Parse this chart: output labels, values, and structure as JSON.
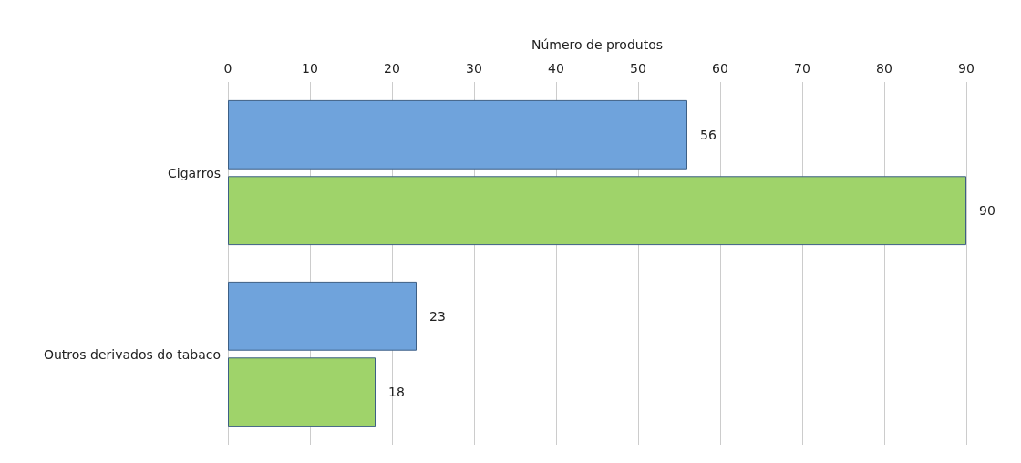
{
  "chart_data": {
    "type": "bar",
    "orientation": "horizontal",
    "xlabel": "Número de produtos",
    "categories": [
      "Cigarros",
      "Outros derivados do tabaco"
    ],
    "series": [
      {
        "color": "#6fa3dc",
        "values": [
          56,
          23
        ]
      },
      {
        "color": "#9fd36a",
        "values": [
          90,
          18
        ]
      }
    ],
    "xlim": [
      0,
      90
    ],
    "xticks": [
      0,
      10,
      20,
      30,
      40,
      50,
      60,
      70,
      80,
      90
    ],
    "grid": "x",
    "data_labels": true
  }
}
